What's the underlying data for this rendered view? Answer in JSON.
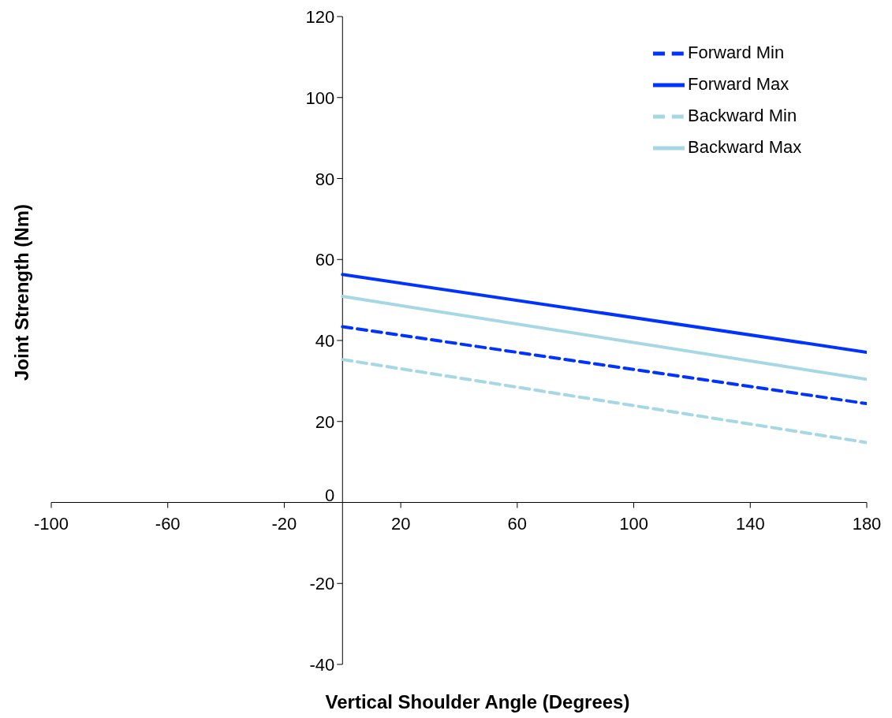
{
  "chart_data": {
    "type": "line",
    "xlabel": "Vertical Shoulder Angle (Degrees)",
    "ylabel": "Joint Strength (Nm)",
    "x": [
      0,
      180
    ],
    "series": [
      {
        "name": "Forward Min",
        "color": "#0033ff",
        "line_style": "dashed",
        "values": [
          43.4,
          24.4
        ]
      },
      {
        "name": "Forward Max",
        "color": "#0033ff",
        "line_style": "solid",
        "values": [
          56.3,
          37.1
        ]
      },
      {
        "name": "Backward Min",
        "color": "#a5d8e4",
        "line_style": "dashed",
        "values": [
          35.3,
          14.8
        ]
      },
      {
        "name": "Backward Max",
        "color": "#a5d8e4",
        "line_style": "solid",
        "values": [
          50.9,
          30.4
        ]
      }
    ],
    "xlim": [
      -100,
      180
    ],
    "xticks": [
      -100,
      -60,
      -20,
      20,
      60,
      100,
      140,
      180
    ],
    "ylim": [
      -40,
      120
    ],
    "yticks": [
      -40,
      -20,
      0,
      20,
      40,
      60,
      80,
      100,
      120
    ],
    "grid": false,
    "legend": "top right",
    "marker": "none"
  }
}
